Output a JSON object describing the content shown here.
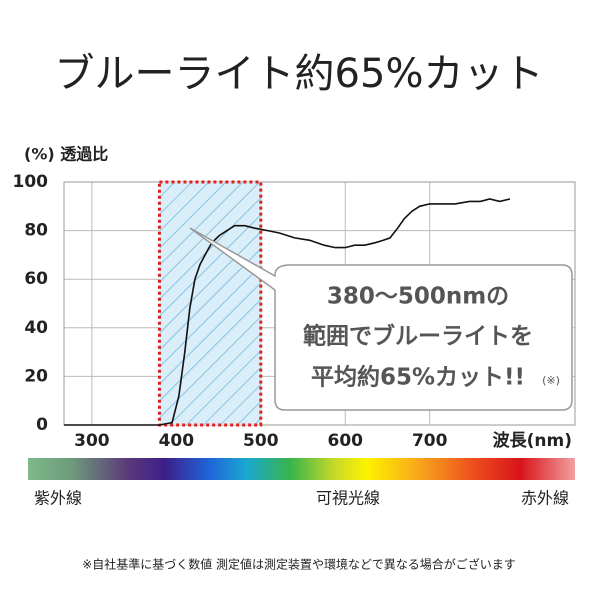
{
  "chart_data": {
    "type": "line",
    "title": "ブルーライト約65%カット",
    "y_label": "(%) 透過比",
    "x_label": "波長(nm)",
    "x": [
      267,
      300,
      350,
      380,
      395,
      403,
      410,
      416,
      422,
      428,
      434,
      442,
      451,
      460,
      469,
      481,
      493,
      508,
      522,
      540,
      558,
      575,
      588,
      600,
      611,
      623,
      635,
      645,
      653,
      662,
      670,
      679,
      688,
      700,
      712,
      730,
      747,
      760,
      771,
      783,
      795
    ],
    "values": [
      0,
      0,
      0,
      0,
      1,
      12,
      30,
      48,
      60,
      66,
      70,
      75,
      78,
      80,
      82,
      82,
      81,
      80,
      79,
      77,
      76,
      74,
      73,
      73,
      74,
      74,
      75,
      76,
      77,
      81,
      85,
      88,
      90,
      91,
      91,
      91,
      92,
      92,
      93,
      92,
      93
    ],
    "color": "#111111",
    "xlim": [
      267,
      872
    ],
    "ylim": [
      0,
      100
    ],
    "xticks": [
      300,
      400,
      500,
      600,
      700
    ],
    "yticks": [
      0,
      20,
      40,
      60,
      80,
      100
    ],
    "grid": true,
    "highlight": [
      380,
      500
    ],
    "annotation": [
      "380〜500nmの",
      "範囲でブルーライトを",
      "平均約65%カット!!"
    ],
    "annotation_note": "(※)",
    "spectrum_labels": [
      "紫外線",
      "可視光線",
      "赤外線"
    ],
    "footnote": "※自社基準に基づく数値 測定値は測定装置や環境などで異なる場合がございます"
  }
}
